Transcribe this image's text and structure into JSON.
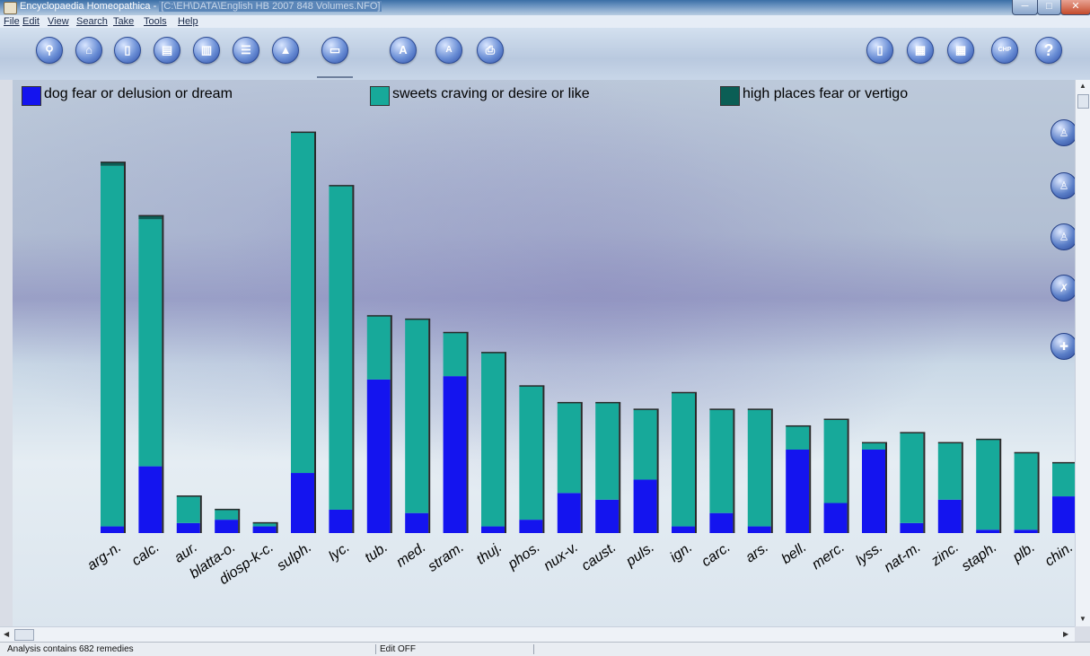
{
  "window": {
    "title": "Encyclopaedia Homeopathica - [C:\\EH\\DATA\\English HB 2007 848 Volumes.NFO]",
    "title_app": "Encyclopaedia Homeopathica - ",
    "title_path": "[C:\\EH\\DATA\\English HB 2007 848 Volumes.NFO]"
  },
  "menu": [
    "File",
    "Edit",
    "View",
    "Search",
    "Take",
    "Tools",
    "Help"
  ],
  "toolbar": {
    "left_icons": [
      "search-icon",
      "home-icon",
      "book-open-icon",
      "document-icon",
      "open-book-icon",
      "list-icon",
      "chart-icon",
      "page-icon",
      "letter-a-icon",
      "small-a-icon",
      "printer-icon"
    ],
    "right_icons": [
      "notebook-icon",
      "calendar-icon",
      "grid-calendar-icon",
      "label-icon",
      "help-icon"
    ],
    "help_label": "?",
    "a_label": "A",
    "small_a_label": "A",
    "label_icon_text": "CHP"
  },
  "chart_data": {
    "type": "bar",
    "stacked": true,
    "categories": [
      "arg-n.",
      "calc.",
      "aur.",
      "blatta-o.",
      "diosp-k-c.",
      "sulph.",
      "lyc.",
      "tub.",
      "med.",
      "stram.",
      "thuj.",
      "phos.",
      "nux-v.",
      "caust.",
      "puls.",
      "ign.",
      "carc.",
      "ars.",
      "bell.",
      "merc.",
      "lyss.",
      "nat-m.",
      "zinc.",
      "staph.",
      "plb.",
      "chin."
    ],
    "series": [
      {
        "name": "dog fear or delusion or dream",
        "color": "#1414ef",
        "values": [
          2,
          20,
          3,
          4,
          2,
          18,
          7,
          46,
          6,
          47,
          2,
          4,
          12,
          10,
          16,
          2,
          6,
          2,
          25,
          9,
          25,
          3,
          10,
          1,
          1,
          11
        ]
      },
      {
        "name": "sweets craving or desire or like",
        "color": "#17a99a",
        "values": [
          108,
          74,
          8,
          3,
          1,
          102,
          97,
          19,
          58,
          13,
          52,
          40,
          27,
          29,
          21,
          40,
          31,
          35,
          7,
          25,
          2,
          27,
          17,
          27,
          23,
          10
        ]
      },
      {
        "name": "high places fear or vertigo",
        "color": "#0b5e55",
        "values": [
          1,
          1,
          0,
          0,
          0,
          0,
          0,
          0,
          0,
          0,
          0,
          0,
          0,
          0,
          0,
          0,
          0,
          0,
          0,
          0,
          0,
          0,
          0,
          0,
          0,
          0
        ]
      }
    ],
    "ylim": [
      0,
      125
    ],
    "grid": false,
    "legend_position": "top"
  },
  "side_icons": [
    "materia-medica-icon",
    "repertory-icon",
    "body-icon",
    "tools-icon",
    "add-analysis-icon"
  ],
  "status": {
    "analysis": "Analysis contains 682 remedies",
    "edit": "Edit OFF",
    "extra": ""
  }
}
